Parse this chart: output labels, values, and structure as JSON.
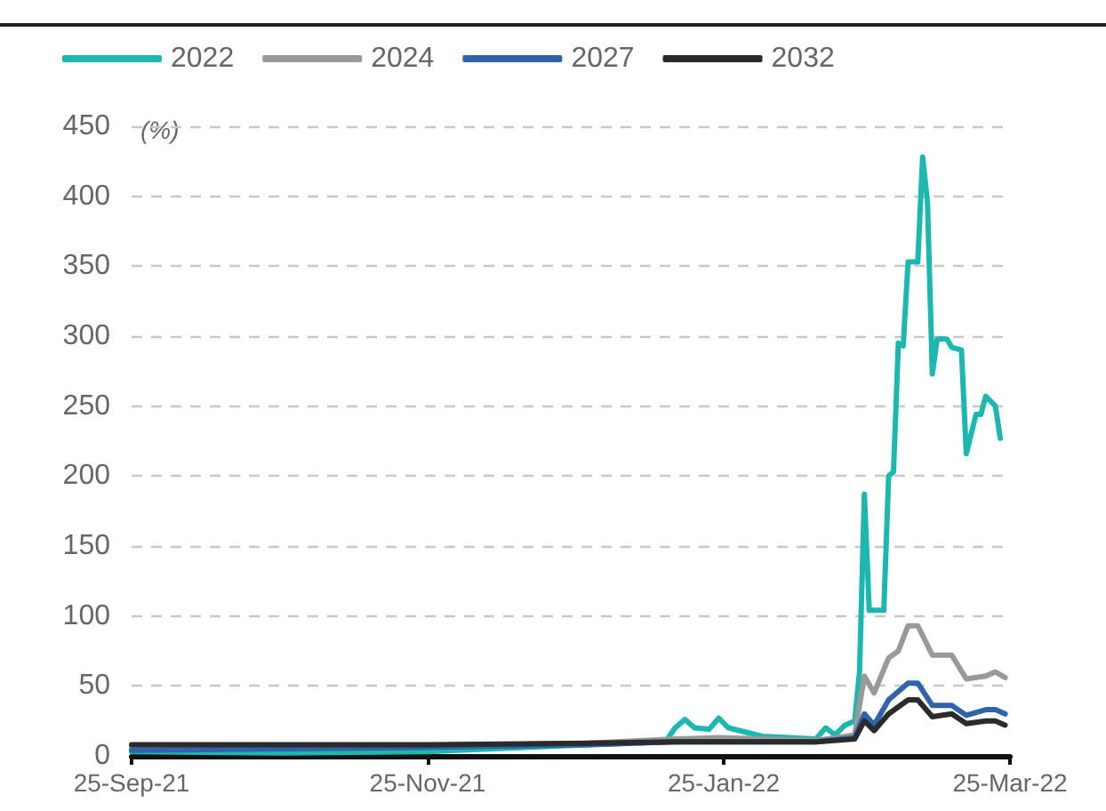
{
  "chart_data": {
    "type": "line",
    "ylabel": "(%)",
    "xlim": [
      "2021-09-25",
      "2022-03-25"
    ],
    "xticks": [
      {
        "value": "2021-09-25",
        "label": "25-Sep-21"
      },
      {
        "value": "2021-11-25",
        "label": "25-Nov-21"
      },
      {
        "value": "2022-01-25",
        "label": "25-Jan-22"
      },
      {
        "value": "2022-03-25",
        "label": "25-Mar-22"
      }
    ],
    "ylim": [
      0,
      450
    ],
    "yticks": [
      0,
      50,
      100,
      150,
      200,
      250,
      300,
      350,
      400,
      450
    ],
    "grid": "y",
    "legend": "top left",
    "marker": "none",
    "line_style": "solid",
    "series": [
      {
        "name": "2022",
        "color": "#1cb8b0",
        "x": [
          "2021-09-25",
          "2021-10-26",
          "2021-11-25",
          "2021-12-28",
          "2022-01-13",
          "2022-01-15",
          "2022-01-17",
          "2022-01-19",
          "2022-01-22",
          "2022-01-24",
          "2022-01-26",
          "2022-02-02",
          "2022-02-13",
          "2022-02-15",
          "2022-02-17",
          "2022-02-19",
          "2022-02-21",
          "2022-02-22",
          "2022-02-23",
          "2022-02-24",
          "2022-02-27",
          "2022-02-28",
          "2022-03-01",
          "2022-03-02",
          "2022-03-03",
          "2022-03-04",
          "2022-03-06",
          "2022-03-07",
          "2022-03-08",
          "2022-03-09",
          "2022-03-10",
          "2022-03-12",
          "2022-03-13",
          "2022-03-15",
          "2022-03-16",
          "2022-03-18",
          "2022-03-19",
          "2022-03-20",
          "2022-03-22",
          "2022-03-23"
        ],
        "values": [
          3,
          2,
          3,
          8,
          10,
          20,
          26,
          20,
          19,
          27,
          20,
          14,
          12,
          20,
          15,
          22,
          25,
          60,
          187,
          104,
          104,
          200,
          203,
          295,
          293,
          353,
          353,
          428,
          396,
          273,
          298,
          298,
          292,
          290,
          216,
          244,
          244,
          257,
          250,
          227
        ]
      },
      {
        "name": "2024",
        "color": "#999999",
        "x": [
          "2021-09-25",
          "2021-11-25",
          "2021-12-28",
          "2022-01-15",
          "2022-01-24",
          "2022-02-13",
          "2022-02-21",
          "2022-02-23",
          "2022-02-25",
          "2022-02-28",
          "2022-03-02",
          "2022-03-04",
          "2022-03-06",
          "2022-03-09",
          "2022-03-13",
          "2022-03-16",
          "2022-03-20",
          "2022-03-22",
          "2022-03-24"
        ],
        "values": [
          6,
          7,
          9,
          12,
          13,
          11,
          15,
          57,
          45,
          70,
          75,
          93,
          93,
          72,
          72,
          55,
          57,
          60,
          56
        ]
      },
      {
        "name": "2027",
        "color": "#2e64a8",
        "x": [
          "2021-09-25",
          "2021-11-25",
          "2021-12-28",
          "2022-01-15",
          "2022-02-13",
          "2022-02-21",
          "2022-02-23",
          "2022-02-25",
          "2022-02-28",
          "2022-03-04",
          "2022-03-06",
          "2022-03-09",
          "2022-03-13",
          "2022-03-16",
          "2022-03-20",
          "2022-03-22",
          "2022-03-24"
        ],
        "values": [
          4,
          6,
          8,
          10,
          10,
          13,
          30,
          22,
          40,
          52,
          52,
          36,
          36,
          29,
          33,
          33,
          30
        ]
      },
      {
        "name": "2032",
        "color": "#2b2b2b",
        "x": [
          "2021-09-25",
          "2021-11-25",
          "2021-12-28",
          "2022-01-15",
          "2022-02-13",
          "2022-02-21",
          "2022-02-23",
          "2022-02-25",
          "2022-02-28",
          "2022-03-04",
          "2022-03-06",
          "2022-03-09",
          "2022-03-13",
          "2022-03-16",
          "2022-03-20",
          "2022-03-22",
          "2022-03-24"
        ],
        "values": [
          8,
          8,
          9,
          10,
          10,
          12,
          25,
          18,
          30,
          40,
          40,
          28,
          30,
          23,
          25,
          25,
          22
        ]
      }
    ]
  }
}
